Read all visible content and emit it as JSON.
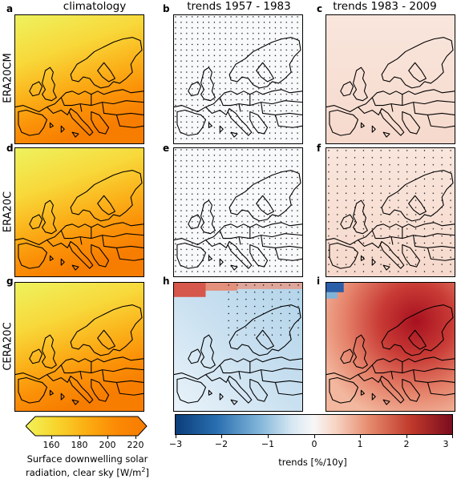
{
  "columns": [
    "climatology",
    "trends 1957 - 1983",
    "trends 1983 - 2009"
  ],
  "rows": [
    "ERA20CM",
    "ERA20C",
    "CERA20C"
  ],
  "panel_letters": [
    "a",
    "b",
    "c",
    "d",
    "e",
    "f",
    "g",
    "h",
    "i"
  ],
  "climatology_colorbar": {
    "ticks": [
      "160",
      "180",
      "200",
      "220"
    ],
    "label_line1": "Surface downwelling solar",
    "label_line2": "radiation, clear sky [W/m",
    "label_sup": "2",
    "label_end": "]",
    "colors": [
      "#f2f25a",
      "#f7d52d",
      "#fbae12",
      "#fb8a05",
      "#f77b00"
    ]
  },
  "trend_colorbar": {
    "ticks": [
      "−3",
      "−2",
      "−1",
      "0",
      "1",
      "2",
      "3"
    ],
    "label": "trends [%/10y]",
    "colors": [
      "#0b3d7a",
      "#2a6fb0",
      "#7fb4d8",
      "#d6e7f2",
      "#f7f7f7",
      "#f7d3c2",
      "#e58a6c",
      "#c0392b",
      "#7a0c1e"
    ]
  },
  "maps": {
    "climatology_style": "yellow-orange gradient, increasing to the south",
    "trend_style_b_e": "near-zero trends (white) with significance stippling",
    "trend_style_c_f": "weak positive trends (light pink)",
    "trend_style_h": "negative trends (light blue), red strip in north-west",
    "trend_style_i": "positive trends (red), darkest over Scandinavia and eastern Europe"
  }
}
